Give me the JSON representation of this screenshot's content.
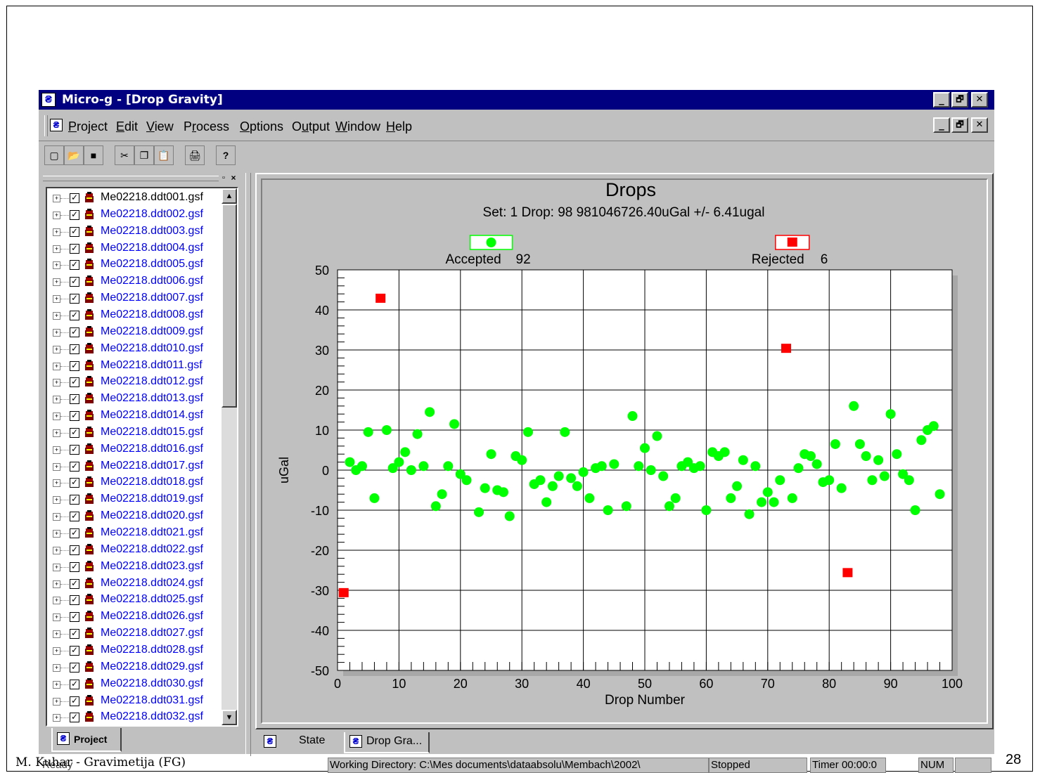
{
  "window": {
    "title": "Micro-g - [Drop Gravity]",
    "controls": [
      "_",
      "🗗",
      "✕"
    ]
  },
  "menubar": {
    "items": [
      {
        "label": "Project",
        "u": "P"
      },
      {
        "label": "Edit",
        "u": "E"
      },
      {
        "label": "View",
        "u": "V"
      },
      {
        "label": "Process",
        "u": "r"
      },
      {
        "label": "Options",
        "u": "O"
      },
      {
        "label": "Output",
        "u": "u"
      },
      {
        "label": "Window",
        "u": "W"
      },
      {
        "label": "Help",
        "u": "H"
      }
    ]
  },
  "toolbar": {
    "icons": [
      "new-icon",
      "open-icon",
      "save-icon",
      "cut-icon",
      "copy-icon",
      "paste-icon",
      "print-icon",
      "help-icon"
    ]
  },
  "project_tree": {
    "files": [
      "Me02218.ddt001.gsf",
      "Me02218.ddt002.gsf",
      "Me02218.ddt003.gsf",
      "Me02218.ddt004.gsf",
      "Me02218.ddt005.gsf",
      "Me02218.ddt006.gsf",
      "Me02218.ddt007.gsf",
      "Me02218.ddt008.gsf",
      "Me02218.ddt009.gsf",
      "Me02218.ddt010.gsf",
      "Me02218.ddt011.gsf",
      "Me02218.ddt012.gsf",
      "Me02218.ddt013.gsf",
      "Me02218.ddt014.gsf",
      "Me02218.ddt015.gsf",
      "Me02218.ddt016.gsf",
      "Me02218.ddt017.gsf",
      "Me02218.ddt018.gsf",
      "Me02218.ddt019.gsf",
      "Me02218.ddt020.gsf",
      "Me02218.ddt021.gsf",
      "Me02218.ddt022.gsf",
      "Me02218.ddt023.gsf",
      "Me02218.ddt024.gsf",
      "Me02218.ddt025.gsf",
      "Me02218.ddt026.gsf",
      "Me02218.ddt027.gsf",
      "Me02218.ddt028.gsf",
      "Me02218.ddt029.gsf",
      "Me02218.ddt030.gsf",
      "Me02218.ddt031.gsf",
      "Me02218.ddt032.gsf"
    ],
    "selected_index": 0,
    "tab_label": "Project"
  },
  "mdi_tabs": [
    {
      "label": "State"
    },
    {
      "label": "Drop Gra..."
    }
  ],
  "chart_data": {
    "type": "scatter",
    "title": "Drops",
    "subtitle": "Set:  1 Drop: 98  981046726.40uGal +/- 6.41ugal",
    "xlabel": "Drop Number",
    "ylabel": "uGal",
    "xlim": [
      0,
      100
    ],
    "ylim": [
      -50,
      50
    ],
    "xticks": [
      0,
      10,
      20,
      30,
      40,
      50,
      60,
      70,
      80,
      90,
      100
    ],
    "yticks": [
      50,
      40,
      30,
      20,
      10,
      0,
      -10,
      -20,
      -30,
      -40,
      -50
    ],
    "grid": true,
    "legend": {
      "accepted": {
        "label": "Accepted",
        "count": "92",
        "color": "#00ff00"
      },
      "rejected": {
        "label": "Rejected",
        "count": "6",
        "color": "#ff0000"
      }
    },
    "series": [
      {
        "name": "Accepted",
        "color": "#00ff00",
        "marker": "circle",
        "points": [
          [
            2,
            2
          ],
          [
            3,
            0
          ],
          [
            4,
            1
          ],
          [
            5,
            9.5
          ],
          [
            6,
            -7
          ],
          [
            8,
            10
          ],
          [
            9,
            0.5
          ],
          [
            10,
            2
          ],
          [
            11,
            4.5
          ],
          [
            12,
            0
          ],
          [
            13,
            9
          ],
          [
            14,
            1
          ],
          [
            15,
            14.5
          ],
          [
            16,
            -9
          ],
          [
            17,
            -6
          ],
          [
            18,
            1
          ],
          [
            19,
            11.5
          ],
          [
            20,
            -1
          ],
          [
            21,
            -2.5
          ],
          [
            23,
            -10.5
          ],
          [
            24,
            -4.5
          ],
          [
            25,
            4
          ],
          [
            26,
            -5
          ],
          [
            27,
            -5.5
          ],
          [
            28,
            -11.5
          ],
          [
            29,
            3.5
          ],
          [
            30,
            2.5
          ],
          [
            31,
            9.5
          ],
          [
            32,
            -3.5
          ],
          [
            33,
            -2.5
          ],
          [
            34,
            -8
          ],
          [
            35,
            -4
          ],
          [
            36,
            -1.5
          ],
          [
            37,
            9.5
          ],
          [
            38,
            -2
          ],
          [
            39,
            -4
          ],
          [
            40,
            -0.5
          ],
          [
            41,
            -7
          ],
          [
            42,
            0.5
          ],
          [
            43,
            1
          ],
          [
            44,
            -10
          ],
          [
            45,
            1.5
          ],
          [
            47,
            -9
          ],
          [
            48,
            13.5
          ],
          [
            49,
            1
          ],
          [
            50,
            5.5
          ],
          [
            51,
            0
          ],
          [
            52,
            8.5
          ],
          [
            53,
            -1.5
          ],
          [
            54,
            -9
          ],
          [
            55,
            -7
          ],
          [
            56,
            1
          ],
          [
            57,
            2
          ],
          [
            58,
            0.5
          ],
          [
            59,
            1
          ],
          [
            60,
            -10
          ],
          [
            61,
            4.5
          ],
          [
            62,
            3.5
          ],
          [
            63,
            4.5
          ],
          [
            64,
            -7
          ],
          [
            65,
            -4
          ],
          [
            66,
            2.5
          ],
          [
            67,
            -11
          ],
          [
            68,
            1
          ],
          [
            69,
            -8
          ],
          [
            70,
            -5.5
          ],
          [
            71,
            -8
          ],
          [
            72,
            -2.5
          ],
          [
            74,
            -7
          ],
          [
            75,
            0.5
          ],
          [
            76,
            4
          ],
          [
            77,
            3.5
          ],
          [
            78,
            1.5
          ],
          [
            79,
            -3
          ],
          [
            80,
            -2.5
          ],
          [
            81,
            6.5
          ],
          [
            82,
            -4.5
          ],
          [
            84,
            16
          ],
          [
            85,
            6.5
          ],
          [
            86,
            3.5
          ],
          [
            87,
            -2.5
          ],
          [
            88,
            2.5
          ],
          [
            89,
            -1.5
          ],
          [
            90,
            14
          ],
          [
            91,
            4
          ],
          [
            92,
            -1
          ],
          [
            93,
            -2.5
          ],
          [
            94,
            -10
          ],
          [
            95,
            7.5
          ],
          [
            96,
            10
          ],
          [
            97,
            11
          ],
          [
            98,
            -6
          ]
        ]
      },
      {
        "name": "Rejected",
        "color": "#ff0000",
        "marker": "square",
        "points": [
          [
            1,
            -30.5
          ],
          [
            7,
            43
          ],
          [
            73,
            30.5
          ],
          [
            83,
            -25.5
          ]
        ]
      }
    ]
  },
  "statusbar": {
    "ready": "Ready",
    "working_dir": "Working Directory: C:\\Mes documents\\dataabsolu\\Membach\\2002\\",
    "state": "Stopped",
    "timer": "Timer 00:00:0",
    "num": "NUM"
  },
  "footer": {
    "author": "M. Kuhar  - Gravimetija (FG)",
    "page": "28"
  }
}
